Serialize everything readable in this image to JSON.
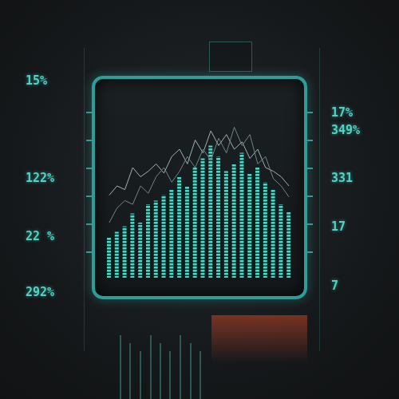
{
  "chart_data": {
    "type": "bar",
    "categories": [
      null,
      null,
      null,
      null,
      null,
      null,
      null,
      null,
      null,
      null,
      null,
      null,
      null,
      null,
      null,
      null,
      null,
      null,
      null,
      null,
      null,
      null,
      null,
      null
    ],
    "values": [
      22,
      25,
      28,
      35,
      30,
      40,
      42,
      45,
      48,
      55,
      50,
      60,
      65,
      72,
      66,
      58,
      62,
      68,
      57,
      60,
      52,
      48,
      40,
      36
    ],
    "color": "#45d9c8",
    "series": [
      {
        "type": "line",
        "color": "#9fb3b8",
        "values": [
          45,
          50,
          48,
          60,
          55,
          58,
          62,
          57,
          66,
          70,
          62,
          75,
          68,
          80,
          72,
          78,
          70,
          74,
          65,
          70,
          60,
          58,
          55,
          50
        ]
      },
      {
        "type": "line",
        "color": "#6f8589",
        "values": [
          30,
          38,
          42,
          40,
          50,
          46,
          55,
          60,
          52,
          58,
          66,
          60,
          70,
          64,
          76,
          68,
          82,
          72,
          78,
          62,
          66,
          54,
          50,
          44
        ]
      }
    ],
    "ylim": [
      0,
      100
    ],
    "grid": false,
    "tick_labels": false,
    "annotations": {
      "left": [
        "15%",
        "122%",
        "22 %",
        "292%"
      ],
      "right": [
        "17%",
        "349%",
        "331",
        "17",
        "7"
      ]
    }
  }
}
